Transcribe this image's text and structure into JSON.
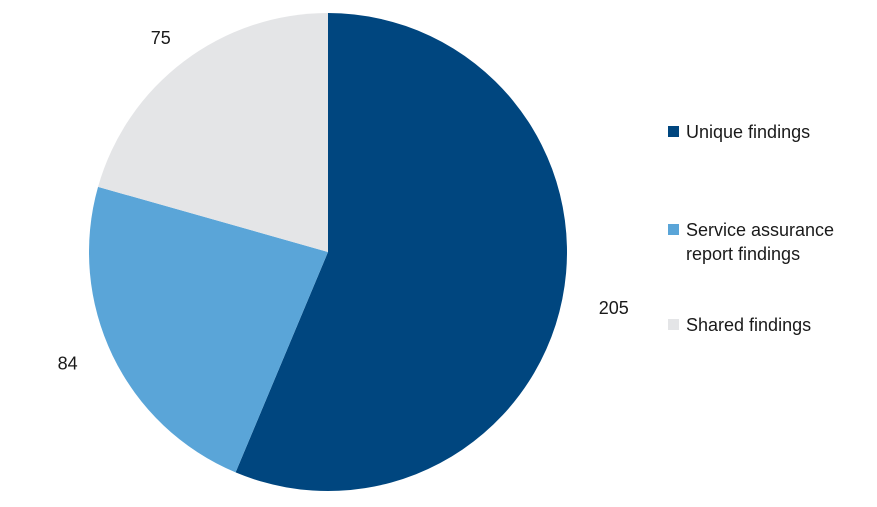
{
  "chart_data": {
    "type": "pie",
    "series": [
      {
        "name": "Unique findings",
        "value": 205,
        "color": "#00467f"
      },
      {
        "name": "Service assurance report findings",
        "value": 84,
        "color": "#5aa5d8"
      },
      {
        "name": "Shared findings",
        "value": 75,
        "color": "#e4e5e7"
      }
    ],
    "start_angle_deg": 0,
    "direction": "clockwise",
    "legend_position": "right",
    "data_labels": true
  },
  "legend": {
    "items": [
      {
        "label": "Unique findings",
        "color": "#00467f"
      },
      {
        "label": "Service assurance report findings",
        "color": "#5aa5d8"
      },
      {
        "label": "Shared findings",
        "color": "#e4e5e7"
      }
    ]
  }
}
